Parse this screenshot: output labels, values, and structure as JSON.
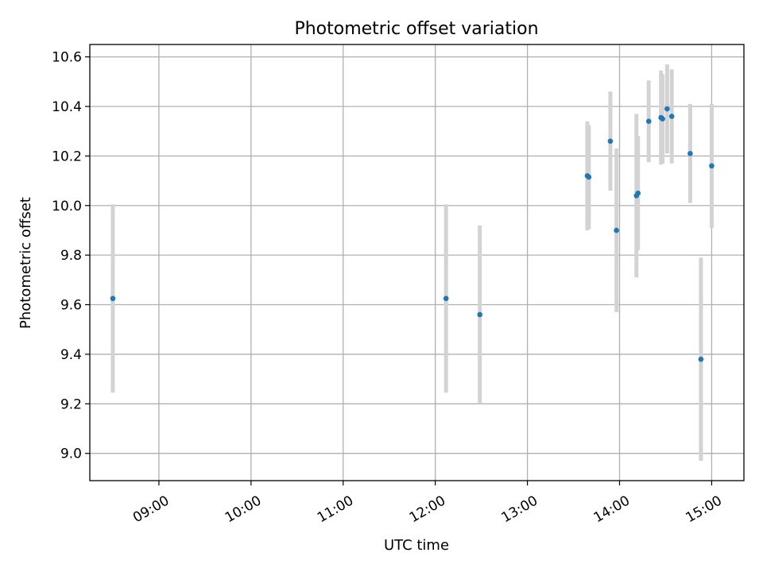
{
  "chart_data": {
    "type": "scatter",
    "title": "Photometric offset variation",
    "xlabel": "UTC time",
    "ylabel": "Photometric offset",
    "grid": true,
    "x_ticks": [
      "09:00",
      "10:00",
      "11:00",
      "12:00",
      "13:00",
      "14:00",
      "15:00"
    ],
    "y_ticks": [
      "9.0",
      "9.2",
      "9.4",
      "9.6",
      "9.8",
      "10.0",
      "10.2",
      "10.4",
      "10.6"
    ],
    "xlim": [
      "08:15",
      "15:21"
    ],
    "ylim": [
      8.89,
      10.65
    ],
    "colors": {
      "point": "#1f77b4",
      "errorbar": "#d3d3d3",
      "grid": "#b0b0b0"
    },
    "series": [
      {
        "x": [
          "08:30",
          "12:07",
          "12:29",
          "13:39",
          "13:40",
          "13:54",
          "13:58",
          "14:11",
          "14:12",
          "14:19",
          "14:27",
          "14:28",
          "14:31",
          "14:34",
          "14:46",
          "14:53",
          "15:00"
        ],
        "y": [
          9.625,
          9.625,
          9.56,
          10.12,
          10.115,
          10.26,
          9.9,
          10.04,
          10.05,
          10.34,
          10.355,
          10.35,
          10.39,
          10.36,
          10.21,
          9.38,
          10.16
        ],
        "err": [
          0.38,
          0.38,
          0.36,
          0.22,
          0.21,
          0.2,
          0.33,
          0.33,
          0.23,
          0.165,
          0.19,
          0.18,
          0.18,
          0.19,
          0.2,
          0.41,
          0.25
        ]
      }
    ]
  }
}
